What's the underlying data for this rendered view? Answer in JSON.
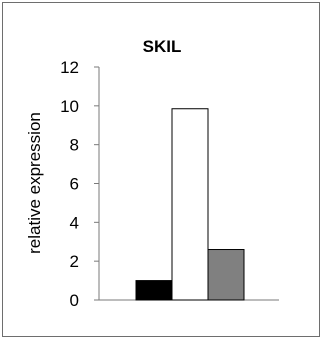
{
  "chart_data": {
    "type": "bar",
    "title": "SKIL",
    "xlabel": "",
    "ylabel": "relative expression",
    "categories": [
      "",
      "",
      ""
    ],
    "values": [
      1.0,
      9.85,
      2.6
    ],
    "colors": [
      "#000000",
      "#ffffff",
      "#808080"
    ],
    "ylim": [
      0,
      12
    ],
    "yticks": [
      0,
      2,
      4,
      6,
      8,
      10,
      12
    ],
    "grid": false,
    "legend": "none"
  }
}
